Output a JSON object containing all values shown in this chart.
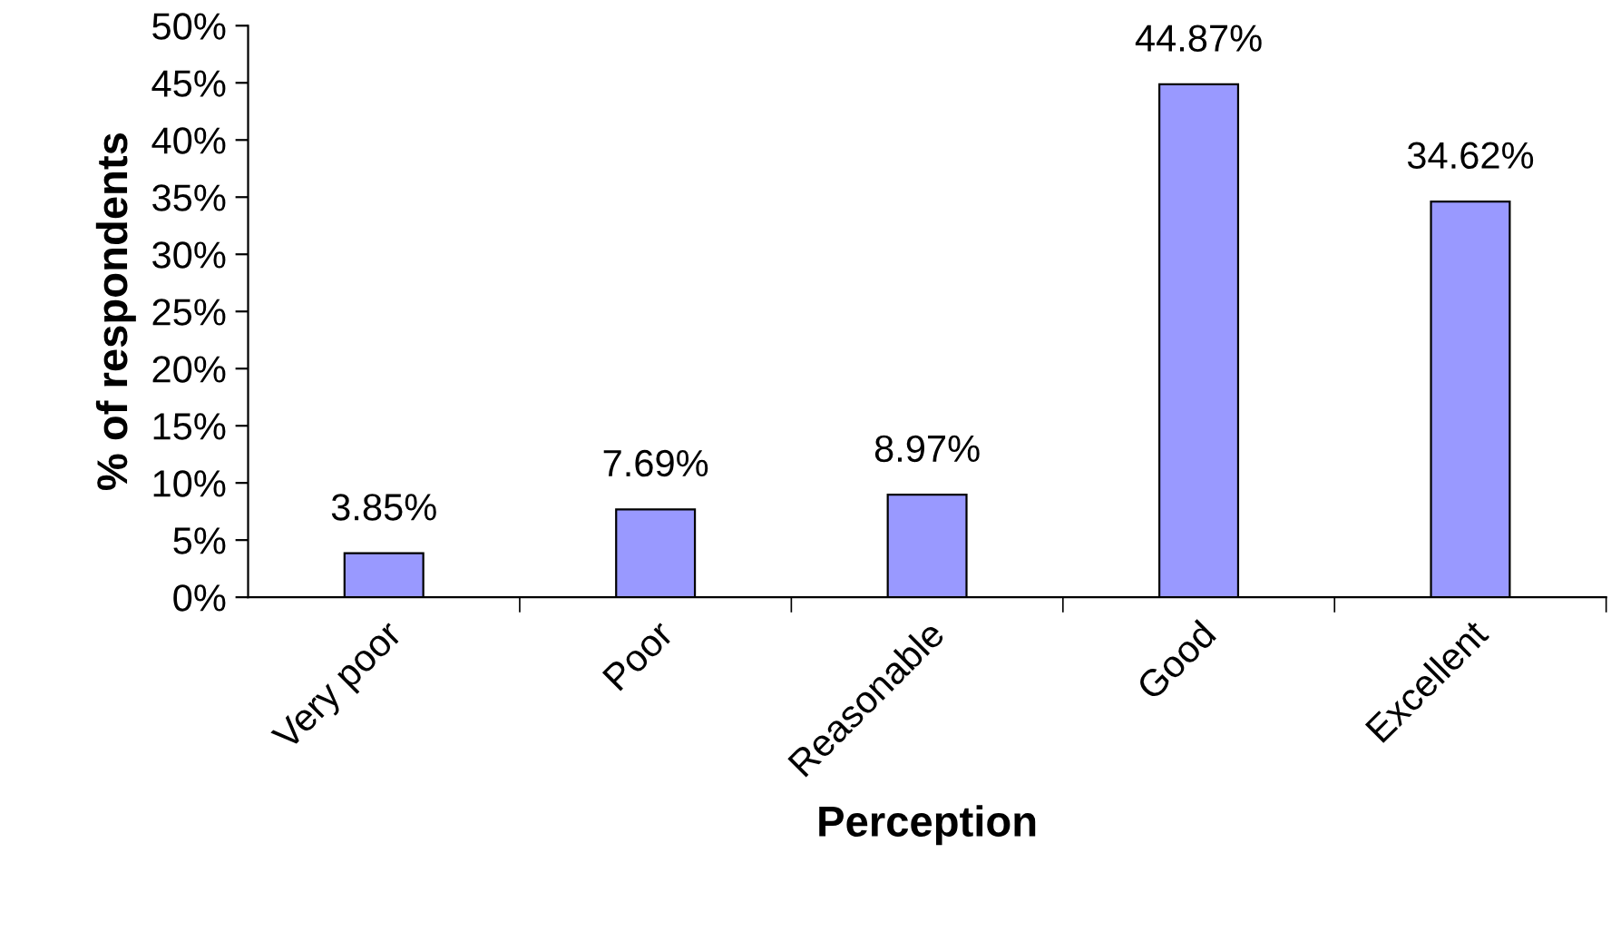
{
  "chart_data": {
    "type": "bar",
    "xlabel": "Perception",
    "ylabel": "% of respondents",
    "categories": [
      "Very poor",
      "Poor",
      "Reasonable",
      "Good",
      "Excellent"
    ],
    "values": [
      3.85,
      7.69,
      8.97,
      44.87,
      34.62
    ],
    "value_labels": [
      "3.85%",
      "7.69%",
      "8.97%",
      "44.87%",
      "34.62%"
    ],
    "color": "#9999ff",
    "ylim": [
      0,
      50
    ],
    "yticks": [
      {
        "value": 0,
        "label": "0%"
      },
      {
        "value": 5,
        "label": "5%"
      },
      {
        "value": 10,
        "label": "10%"
      },
      {
        "value": 15,
        "label": "15%"
      },
      {
        "value": 20,
        "label": "20%"
      },
      {
        "value": 25,
        "label": "25%"
      },
      {
        "value": 30,
        "label": "30%"
      },
      {
        "value": 35,
        "label": "35%"
      },
      {
        "value": 40,
        "label": "40%"
      },
      {
        "value": 45,
        "label": "45%"
      },
      {
        "value": 50,
        "label": "50%"
      }
    ],
    "grid": false,
    "legend": false
  }
}
